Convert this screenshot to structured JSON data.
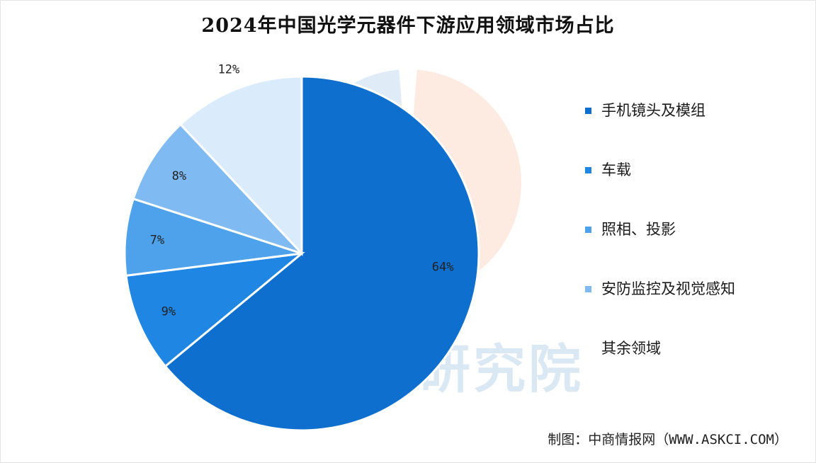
{
  "chart_data": {
    "type": "pie",
    "title": "2024年中国光学元器件下游应用领域市场占比",
    "series": [
      {
        "name": "手机镜头及模组",
        "value": 64,
        "label": "64%",
        "color": "#0e6fcf"
      },
      {
        "name": "车载",
        "value": 9,
        "label": "9%",
        "color": "#1f86e4"
      },
      {
        "name": "照相、投影",
        "value": 7,
        "label": "7%",
        "color": "#4ea2ec"
      },
      {
        "name": "安防监控及视觉感知",
        "value": 8,
        "label": "8%",
        "color": "#7fbbf2"
      },
      {
        "name": "其余领域",
        "value": 12,
        "label": "12%",
        "color": "#daebfb"
      }
    ],
    "start": "12 o'clock",
    "direction": "clockwise",
    "legend_position": "right"
  },
  "source": "制图：中商情报网（WWW.ASKCI.COM）",
  "watermark": {
    "text": "研究院",
    "colors": [
      "#6fa6d6",
      "#f5a27c"
    ]
  }
}
